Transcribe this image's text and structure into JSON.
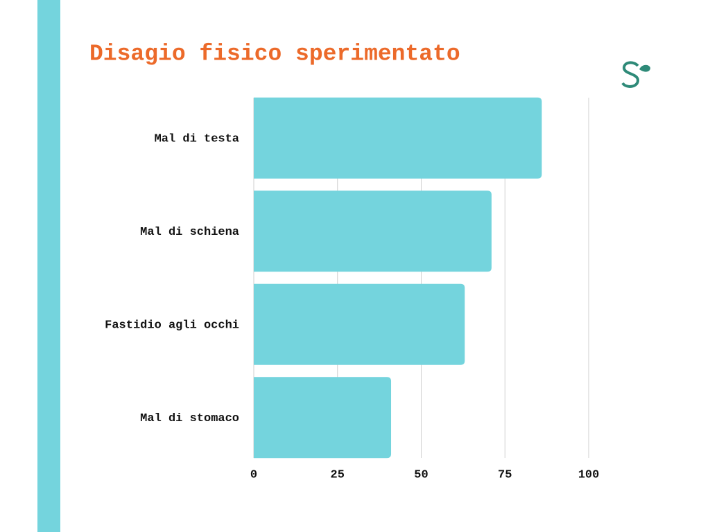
{
  "chart_data": {
    "type": "bar",
    "orientation": "horizontal",
    "title": "Disagio fisico sperimentato",
    "categories": [
      "Mal di testa",
      "Mal di schiena",
      "Fastidio agli occhi",
      "Mal di stomaco"
    ],
    "values": [
      86,
      71,
      63,
      41
    ],
    "color": "#74d4dd",
    "xlim": [
      0,
      100
    ],
    "xticks": [
      0,
      25,
      50,
      75,
      100
    ],
    "grid": true
  }
}
